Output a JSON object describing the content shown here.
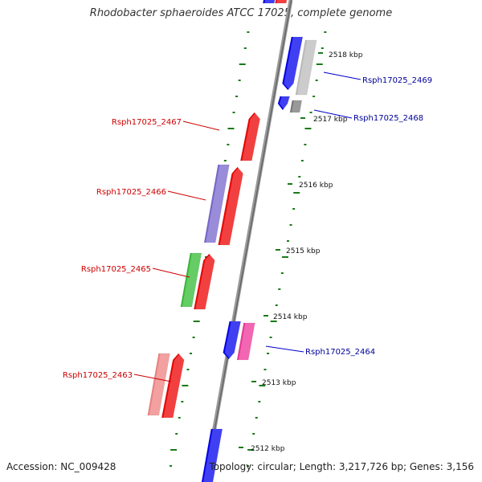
{
  "title": "Rhodobacter sphaeroides ATCC 17025, complete genome",
  "footer": {
    "accession": "Accession: NC_009428",
    "summary": "Topology: circular; Length: 3,217,726 bp; Genes: 3,156"
  },
  "scale": {
    "unit": "kbp",
    "ticks": [
      {
        "label": "2512 kbp"
      },
      {
        "label": "2513 kbp"
      },
      {
        "label": "2514 kbp"
      },
      {
        "label": "2515 kbp"
      },
      {
        "label": "2516 kbp"
      },
      {
        "label": "2517 kbp"
      },
      {
        "label": "2518 kbp"
      }
    ]
  },
  "gene_labels": [
    {
      "text": "Rsph17025_2469",
      "strand": "forward"
    },
    {
      "text": "Rsph17025_2468",
      "strand": "forward"
    },
    {
      "text": "Rsph17025_2467",
      "strand": "reverse"
    },
    {
      "text": "Rsph17025_2466",
      "strand": "reverse"
    },
    {
      "text": "Rsph17025_2465",
      "strand": "reverse"
    },
    {
      "text": "Rsph17025_2464",
      "strand": "forward"
    },
    {
      "text": "Rsph17025_2463",
      "strand": "reverse"
    }
  ],
  "colors": {
    "backbone": "#888888",
    "backbone_edge": "#bbbbbb",
    "tick": "#1a7a1a",
    "cds_forward": "#0000ee",
    "cds_reverse": "#ee0000",
    "label_forward": "#000099",
    "label_reverse": "#cc0000",
    "cog_purple": "#7766cc",
    "cog_green": "#33bb33",
    "cog_pink": "#ee3399",
    "cog_salmon": "#ee8080",
    "cog_grey_light": "#bbbbbb",
    "cog_grey_dark": "#777777"
  }
}
